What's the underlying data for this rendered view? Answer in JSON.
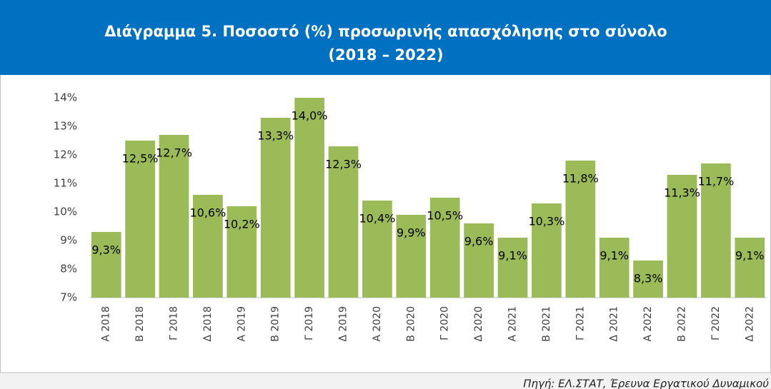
{
  "chart_data": {
    "type": "bar",
    "title": [
      "Διάγραμμα 5. Ποσοστό (%) προσωρινής απασχόλησης στο σύνολο",
      "(2018 – 2022)"
    ],
    "categories": [
      "Α 2018",
      "Β 2018",
      "Γ 2018",
      "Δ 2018",
      "Α 2019",
      "Β 2019",
      "Γ 2019",
      "Δ 2019",
      "Α 2020",
      "Β 2020",
      "Γ 2020",
      "Δ 2020",
      "Α 2021",
      "Β 2021",
      "Γ 2021",
      "Δ 2021",
      "Α 2022",
      "Β 2022",
      "Γ 2022",
      "Δ 2022"
    ],
    "values": [
      9.3,
      12.5,
      12.7,
      10.6,
      10.2,
      13.3,
      14.0,
      12.3,
      10.4,
      9.9,
      10.5,
      9.6,
      9.1,
      10.3,
      11.8,
      9.1,
      8.3,
      11.3,
      11.7,
      9.1
    ],
    "value_labels": [
      "9,3%",
      "12,5%",
      "12,7%",
      "10,6%",
      "10,2%",
      "13,3%",
      "14,0%",
      "12,3%",
      "10,4%",
      "9,9%",
      "10,5%",
      "9,6%",
      "9,1%",
      "10,3%",
      "11,8%",
      "9,1%",
      "8,3%",
      "11,3%",
      "11,7%",
      "9,1%"
    ],
    "color": "#9bbb59",
    "ylim": [
      7,
      14
    ],
    "yticks": [
      {
        "value": 7,
        "label": "7%"
      },
      {
        "value": 8,
        "label": "8%"
      },
      {
        "value": 9,
        "label": "9%"
      },
      {
        "value": 10,
        "label": "10%"
      },
      {
        "value": 11,
        "label": "11%"
      },
      {
        "value": 12,
        "label": "12%"
      },
      {
        "value": 13,
        "label": "13%"
      },
      {
        "value": 14,
        "label": "14%"
      }
    ],
    "grid": false,
    "source": "Πηγή: ΕΛ.ΣΤΑΤ, Έρευνα Εργατικού Δυναμικού"
  }
}
